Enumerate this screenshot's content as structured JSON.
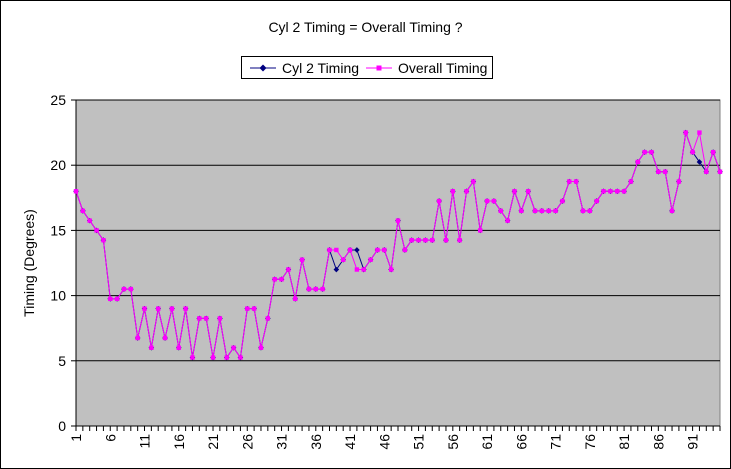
{
  "chart_data": {
    "type": "line",
    "title": "Cyl 2 Timing = Overall Timing ?",
    "xlabel": "",
    "ylabel": "Timing (Degrees)",
    "ylim": [
      0,
      25
    ],
    "yticks": [
      0,
      5,
      10,
      15,
      20,
      25
    ],
    "x_tick_labels": [
      "1",
      "6",
      "11",
      "16",
      "21",
      "26",
      "31",
      "36",
      "41",
      "46",
      "51",
      "56",
      "61",
      "66",
      "71",
      "76",
      "81",
      "86",
      "91"
    ],
    "x_count": 95,
    "grid": true,
    "legend_position": "top-center",
    "plot_background": "#c0c0c0",
    "series": [
      {
        "name": "Cyl 2 Timing",
        "color": "#000080",
        "marker": "diamond",
        "values": [
          18,
          16.5,
          15.75,
          15,
          14.25,
          9.75,
          9.75,
          10.5,
          10.5,
          6.75,
          9,
          6,
          9,
          6.75,
          9,
          6,
          9,
          5.25,
          8.25,
          8.25,
          5.25,
          8.25,
          5.25,
          6,
          5.25,
          9,
          9,
          6,
          8.25,
          11.25,
          11.25,
          12,
          9.75,
          12.75,
          10.5,
          10.5,
          10.5,
          13.5,
          12,
          12.75,
          13.5,
          13.5,
          12,
          12.75,
          13.5,
          13.5,
          12,
          15.75,
          13.5,
          14.25,
          14.25,
          14.25,
          14.25,
          17.25,
          14.25,
          18,
          14.25,
          18,
          18.75,
          15,
          17.25,
          17.25,
          16.5,
          15.75,
          18,
          16.5,
          18,
          16.5,
          16.5,
          16.5,
          16.5,
          17.25,
          18.75,
          18.75,
          16.5,
          16.5,
          17.25,
          18,
          18,
          18,
          18,
          18.75,
          20.25,
          21,
          21,
          19.5,
          19.5,
          16.5,
          18.75,
          22.5,
          21,
          20.25,
          19.5,
          21,
          19.5
        ]
      },
      {
        "name": "Overall Timing",
        "color": "#ff00ff",
        "marker": "square",
        "values": [
          18,
          16.5,
          15.75,
          15,
          14.25,
          9.75,
          9.75,
          10.5,
          10.5,
          6.75,
          9,
          6,
          9,
          6.75,
          9,
          6,
          9,
          5.25,
          8.25,
          8.25,
          5.25,
          8.25,
          5.25,
          6,
          5.25,
          9,
          9,
          6,
          8.25,
          11.25,
          11.25,
          12,
          9.75,
          12.75,
          10.5,
          10.5,
          10.5,
          13.5,
          13.5,
          12.75,
          13.5,
          12,
          12,
          12.75,
          13.5,
          13.5,
          12,
          15.75,
          13.5,
          14.25,
          14.25,
          14.25,
          14.25,
          17.25,
          14.25,
          18,
          14.25,
          18,
          18.75,
          15,
          17.25,
          17.25,
          16.5,
          15.75,
          18,
          16.5,
          18,
          16.5,
          16.5,
          16.5,
          16.5,
          17.25,
          18.75,
          18.75,
          16.5,
          16.5,
          17.25,
          18,
          18,
          18,
          18,
          18.75,
          20.25,
          21,
          21,
          19.5,
          19.5,
          16.5,
          18.75,
          22.5,
          21,
          22.5,
          19.5,
          21,
          19.5
        ]
      }
    ]
  }
}
